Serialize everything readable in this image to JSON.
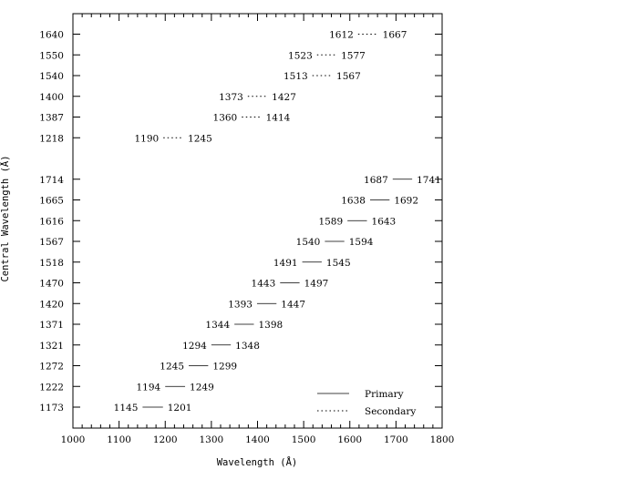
{
  "chart_data": {
    "type": "line",
    "xlabel": "Wavelength (Å)",
    "ylabel": "Central Wavelength (Å)",
    "xlim": [
      1000,
      1800
    ],
    "xticks": [
      1000,
      1100,
      1200,
      1300,
      1400,
      1500,
      1600,
      1700,
      1800
    ],
    "grid": false,
    "legend": {
      "position": "bottom-right",
      "entries": [
        {
          "label": "Primary",
          "style": "solid"
        },
        {
          "label": "Secondary",
          "style": "dotted"
        }
      ]
    },
    "series": [
      {
        "style": "dotted",
        "ranges": [
          {
            "central": "1640",
            "start": 1612,
            "end": 1667
          },
          {
            "central": "1550",
            "start": 1523,
            "end": 1577
          },
          {
            "central": "1540",
            "start": 1513,
            "end": 1567
          },
          {
            "central": "1400",
            "start": 1373,
            "end": 1427
          },
          {
            "central": "1387",
            "start": 1360,
            "end": 1414
          },
          {
            "central": "1218",
            "start": 1190,
            "end": 1245
          }
        ]
      },
      {
        "style": "solid",
        "ranges": [
          {
            "central": "1714",
            "start": 1687,
            "end": 1741
          },
          {
            "central": "1665",
            "start": 1638,
            "end": 1692
          },
          {
            "central": "1616",
            "start": 1589,
            "end": 1643
          },
          {
            "central": "1567",
            "start": 1540,
            "end": 1594
          },
          {
            "central": "1518",
            "start": 1491,
            "end": 1545
          },
          {
            "central": "1470",
            "start": 1443,
            "end": 1497
          },
          {
            "central": "1420",
            "start": 1393,
            "end": 1447
          },
          {
            "central": "1371",
            "start": 1344,
            "end": 1398
          },
          {
            "central": "1321",
            "start": 1294,
            "end": 1348
          },
          {
            "central": "1272",
            "start": 1245,
            "end": 1299
          },
          {
            "central": "1222",
            "start": 1194,
            "end": 1249
          },
          {
            "central": "1173",
            "start": 1145,
            "end": 1201
          }
        ]
      }
    ]
  }
}
